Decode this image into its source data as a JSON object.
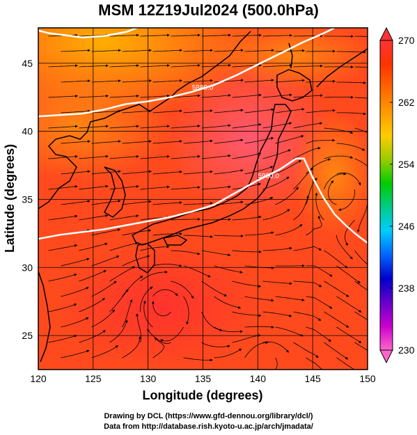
{
  "title": "MSM 12Z19Jul2024 (500.0hPa)",
  "xlabel": "Longitude (degrees)",
  "ylabel": "Latitude  (degrees)",
  "footer": {
    "line1": "Drawing by DCL (https://www.gfd-dennou.org/library/dcl/)",
    "line2": "Data from http://database.rish.kyoto-u.ac.jp/arch/jmadata/"
  },
  "map": {
    "lon_range": [
      120,
      150
    ],
    "lat_range": [
      22.5,
      47.6
    ],
    "lon_ticks": [
      120,
      125,
      130,
      135,
      140,
      145,
      150
    ],
    "lat_ticks": [
      25,
      30,
      35,
      40,
      45
    ],
    "grid": true
  },
  "contours": [
    {
      "label": "5880.0",
      "points": [
        [
          120,
          41.1
        ],
        [
          122,
          41.2
        ],
        [
          124,
          41.3
        ],
        [
          126,
          41.6
        ],
        [
          128,
          42.0
        ],
        [
          130,
          42.2
        ],
        [
          132,
          42.5
        ],
        [
          134,
          42.9
        ],
        [
          136,
          43.4
        ],
        [
          138,
          44.1
        ],
        [
          140,
          44.9
        ],
        [
          142,
          45.7
        ],
        [
          144,
          46.5
        ],
        [
          146,
          47.2
        ],
        [
          147,
          47.6
        ]
      ]
    },
    {
      "label": "5900.0",
      "points": [
        [
          120,
          32.1
        ],
        [
          122,
          32.4
        ],
        [
          124,
          32.6
        ],
        [
          126,
          32.8
        ],
        [
          128,
          33.1
        ],
        [
          130,
          33.4
        ],
        [
          132,
          33.7
        ],
        [
          134,
          34.1
        ],
        [
          136,
          34.6
        ],
        [
          138,
          35.5
        ],
        [
          140,
          36.4
        ],
        [
          142,
          37.2
        ],
        [
          143.5,
          38.0
        ],
        [
          144.2,
          38.0
        ],
        [
          145,
          36.6
        ],
        [
          146,
          35.1
        ],
        [
          147,
          33.9
        ],
        [
          148,
          33.1
        ],
        [
          149,
          32.4
        ],
        [
          150,
          31.8
        ]
      ]
    },
    {
      "label": "",
      "points": [
        [
          120,
          47.4
        ],
        [
          121,
          47.2
        ],
        [
          122,
          47.1
        ],
        [
          124,
          46.9
        ],
        [
          126,
          47.0
        ],
        [
          128,
          47.3
        ],
        [
          129,
          47.6
        ]
      ]
    }
  ],
  "colorbar": {
    "min": 230,
    "max": 270,
    "labels": [
      270,
      262,
      254,
      246,
      238,
      230
    ],
    "stops": [
      "#ff66cc",
      "#cc00cc",
      "#6600cc",
      "#0000cc",
      "#0066ff",
      "#00ccff",
      "#00cc88",
      "#00cc00",
      "#99cc00",
      "#ffcc00",
      "#ff9900",
      "#ff6600",
      "#ff3300",
      "#ff3333"
    ]
  },
  "field_colors": {
    "warm": "#ff4a1e",
    "hot": "#ff3c3c",
    "orange": "#ff8a1a",
    "yellow": "#ffb800",
    "pink": "#ff6670"
  },
  "contour_color": "#ffffff"
}
